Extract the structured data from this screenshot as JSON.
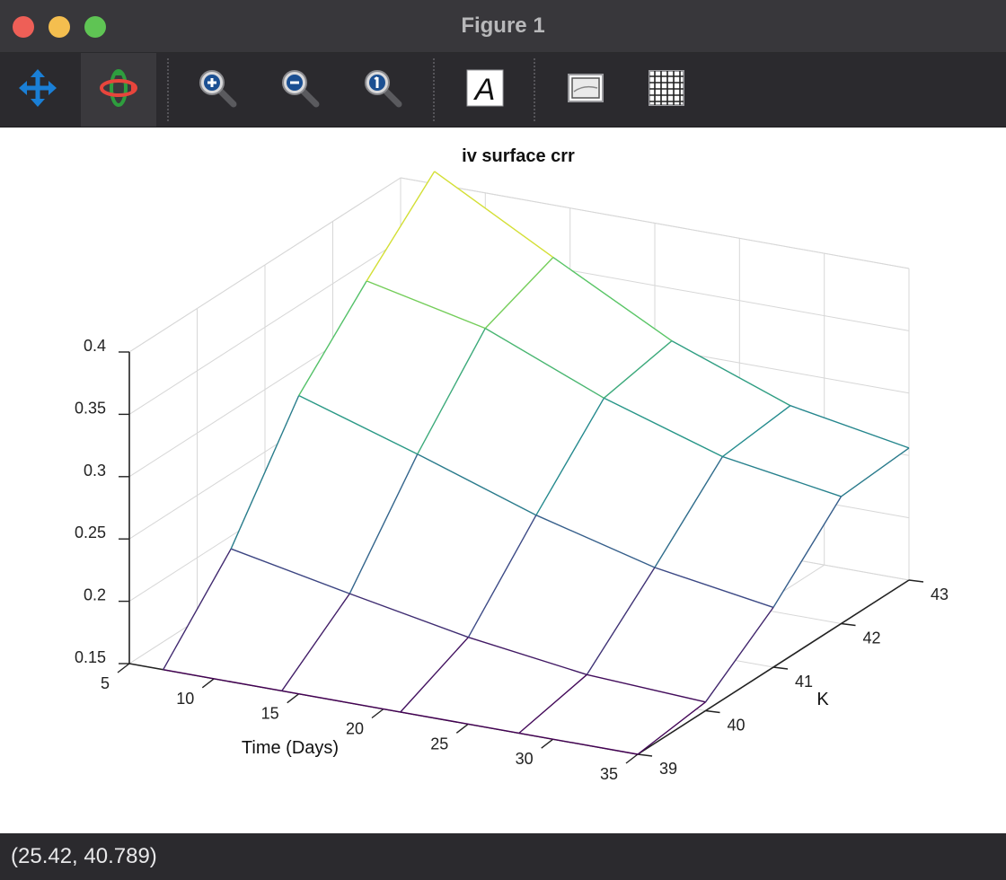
{
  "window": {
    "title": "Figure 1"
  },
  "toolbar": {
    "tools": [
      {
        "name": "pan",
        "icon": "pan-arrows-icon"
      },
      {
        "name": "rotate",
        "icon": "rotate-orbit-icon"
      },
      {
        "name": "zoom-in",
        "icon": "zoom-in-icon"
      },
      {
        "name": "zoom-out",
        "icon": "zoom-out-icon"
      },
      {
        "name": "zoom-reset",
        "icon": "zoom-reset-icon"
      },
      {
        "name": "text",
        "icon": "text-a-icon"
      },
      {
        "name": "axes",
        "icon": "axes-box-icon"
      },
      {
        "name": "grid",
        "icon": "grid-icon"
      }
    ],
    "active_tool": "rotate"
  },
  "status": {
    "coords": "(25.42, 40.789)"
  },
  "chart_data": {
    "type": "surface",
    "title": "iv surface crr",
    "xlabel": "Time (Days)",
    "ylabel": "K",
    "zlabel": "",
    "x": [
      7,
      14,
      21,
      28,
      35
    ],
    "y": [
      39,
      40,
      41,
      42,
      43
    ],
    "z": [
      [
        0.15,
        0.15,
        0.15,
        0.15,
        0.15
      ],
      [
        0.212,
        0.193,
        0.175,
        0.162,
        0.157
      ],
      [
        0.3,
        0.27,
        0.238,
        0.213,
        0.198
      ],
      [
        0.357,
        0.336,
        0.297,
        0.267,
        0.252
      ],
      [
        0.41,
        0.358,
        0.308,
        0.273,
        0.256
      ]
    ],
    "xticks": [
      5,
      10,
      15,
      20,
      25,
      30,
      35
    ],
    "yticks": [
      39,
      40,
      41,
      42,
      43
    ],
    "zticks": [
      0.15,
      0.2,
      0.25,
      0.3,
      0.35,
      0.4
    ],
    "xlim": [
      5,
      35
    ],
    "ylim": [
      39,
      43
    ],
    "zlim": [
      0.15,
      0.4
    ],
    "colormap": [
      "#440154",
      "#3b528b",
      "#21908d",
      "#5dc963",
      "#fde725"
    ],
    "grid": true
  }
}
